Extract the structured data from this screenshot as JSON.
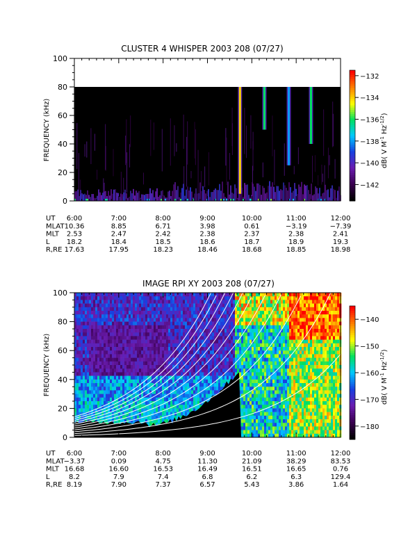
{
  "chart_data": [
    {
      "type": "heatmap",
      "title": "CLUSTER 4 WHISPER 2003 208 (07/27)",
      "ylabel": "FREQUENCY (kHz)",
      "ylim": [
        0,
        100
      ],
      "data_ceiling_khz": 80,
      "yticks": [
        "0",
        "20",
        "40",
        "60",
        "80",
        "100"
      ],
      "xticks": [
        "6:00",
        "7:00",
        "8:00",
        "9:00",
        "10:00",
        "11:00",
        "12:00"
      ],
      "colorbar": {
        "label": "dB( V M⁻¹ Hz⁻¹ᐟ²)",
        "label_parts": [
          "dB( V M",
          "-1",
          " Hz",
          "-1/2",
          ")"
        ],
        "range": [
          -143.5,
          -131.5
        ],
        "ticks": [
          "-132",
          "-134",
          "-136",
          "-138",
          "-140",
          "-142"
        ],
        "colors": [
          "#000000",
          "#3a0050",
          "#6a1cb0",
          "#1840e0",
          "#00c8ff",
          "#00e060",
          "#ffff00",
          "#ff8000",
          "#ff0000"
        ]
      },
      "emissions": [
        {
          "time": "9:44",
          "fmin_khz": 5,
          "fmax_khz": 80,
          "level": -134
        },
        {
          "time": "10:17",
          "fmin_khz": 50,
          "fmax_khz": 80,
          "level": -136
        },
        {
          "time": "10:50",
          "fmin_khz": 25,
          "fmax_khz": 80,
          "level": -138
        },
        {
          "time": "11:20",
          "fmin_khz": 40,
          "fmax_khz": 80,
          "level": -136
        }
      ],
      "ephemeris": {
        "labels": [
          "UT",
          "MLAT",
          "MLT",
          "L",
          "R,RE"
        ],
        "rows": [
          [
            "6:00",
            "7:00",
            "8:00",
            "9:00",
            "10:00",
            "11:00",
            "12:00"
          ],
          [
            "10.36",
            "8.85",
            "6.71",
            "3.98",
            "0.61",
            "−3.19",
            "−7.39"
          ],
          [
            "2.53",
            "2.47",
            "2.42",
            "2.38",
            "2.37",
            "2.38",
            "2.41"
          ],
          [
            "18.2",
            "18.4",
            "18.5",
            "18.6",
            "18.7",
            "18.9",
            "19.3"
          ],
          [
            "17.63",
            "17.95",
            "18.23",
            "18.46",
            "18.68",
            "18.85",
            "18.98"
          ]
        ]
      }
    },
    {
      "type": "heatmap",
      "title": "IMAGE RPI XY 2003 208 (07/27)",
      "ylabel": "FREQUENCY (kHz)",
      "ylim": [
        0,
        100
      ],
      "yticks": [
        "0",
        "20",
        "40",
        "60",
        "80",
        "100"
      ],
      "xticks": [
        "6:00",
        "7:00",
        "8:00",
        "9:00",
        "10:00",
        "11:00",
        "12:00"
      ],
      "colorbar": {
        "label": "dB( V M⁻¹ Hz⁻¹ᐟ²)",
        "label_parts": [
          "dB( V M",
          "-1",
          " Hz",
          "-1/2",
          ")"
        ],
        "range": [
          -185,
          -135
        ],
        "ticks": [
          "-140",
          "-150",
          "-160",
          "-170",
          "-180"
        ],
        "colors": [
          "#000000",
          "#3a0050",
          "#6a1cb0",
          "#1840e0",
          "#00c8ff",
          "#00e060",
          "#ffff00",
          "#ff8000",
          "#ff0000"
        ]
      },
      "ephemeris": {
        "labels": [
          "UT",
          "MLAT",
          "MLT",
          "L",
          "R,RE"
        ],
        "rows": [
          [
            "6:00",
            "7:00",
            "8:00",
            "9:00",
            "10:00",
            "11:00",
            "12:00"
          ],
          [
            "−3.37",
            "0.09",
            "4.75",
            "11.30",
            "21.09",
            "38.29",
            "83.53"
          ],
          [
            "16.68",
            "16.60",
            "16.53",
            "16.49",
            "16.51",
            "16.65",
            "0.76"
          ],
          [
            "8.2",
            "7.9",
            "7.4",
            "6.8",
            "6.2",
            "6.3",
            "129.4"
          ],
          [
            "8.19",
            "7.90",
            "7.37",
            "6.57",
            "5.43",
            "3.86",
            "1.64"
          ]
        ]
      }
    }
  ]
}
